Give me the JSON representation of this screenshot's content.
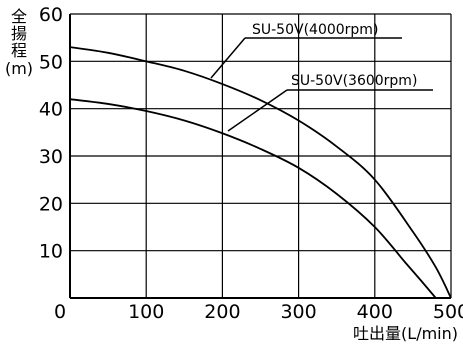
{
  "chart_data": {
    "type": "line",
    "title": "",
    "xlabel": "吐出量(L/min)",
    "ylabel": [
      "全",
      "揚",
      "程",
      "(m)"
    ],
    "xlim": [
      0,
      500
    ],
    "ylim": [
      0,
      60
    ],
    "xticks": [
      0,
      100,
      200,
      300,
      400,
      500
    ],
    "yticks": [
      10,
      20,
      30,
      40,
      50,
      60
    ],
    "grid": true,
    "series": [
      {
        "name": "SU-50V(4000rpm)",
        "x": [
          0,
          50,
          100,
          150,
          200,
          250,
          300,
          350,
          400,
          450,
          480,
          500
        ],
        "y": [
          53,
          51.8,
          50,
          48,
          45.2,
          41.8,
          37.5,
          32,
          25,
          14,
          6.5,
          0
        ]
      },
      {
        "name": "SU-50V(3600rpm)",
        "x": [
          0,
          50,
          100,
          150,
          200,
          250,
          300,
          350,
          400,
          440,
          460,
          480
        ],
        "y": [
          42,
          41,
          39.5,
          37.5,
          34.8,
          31.5,
          27.5,
          22,
          15,
          7.5,
          3.8,
          0
        ]
      }
    ]
  }
}
